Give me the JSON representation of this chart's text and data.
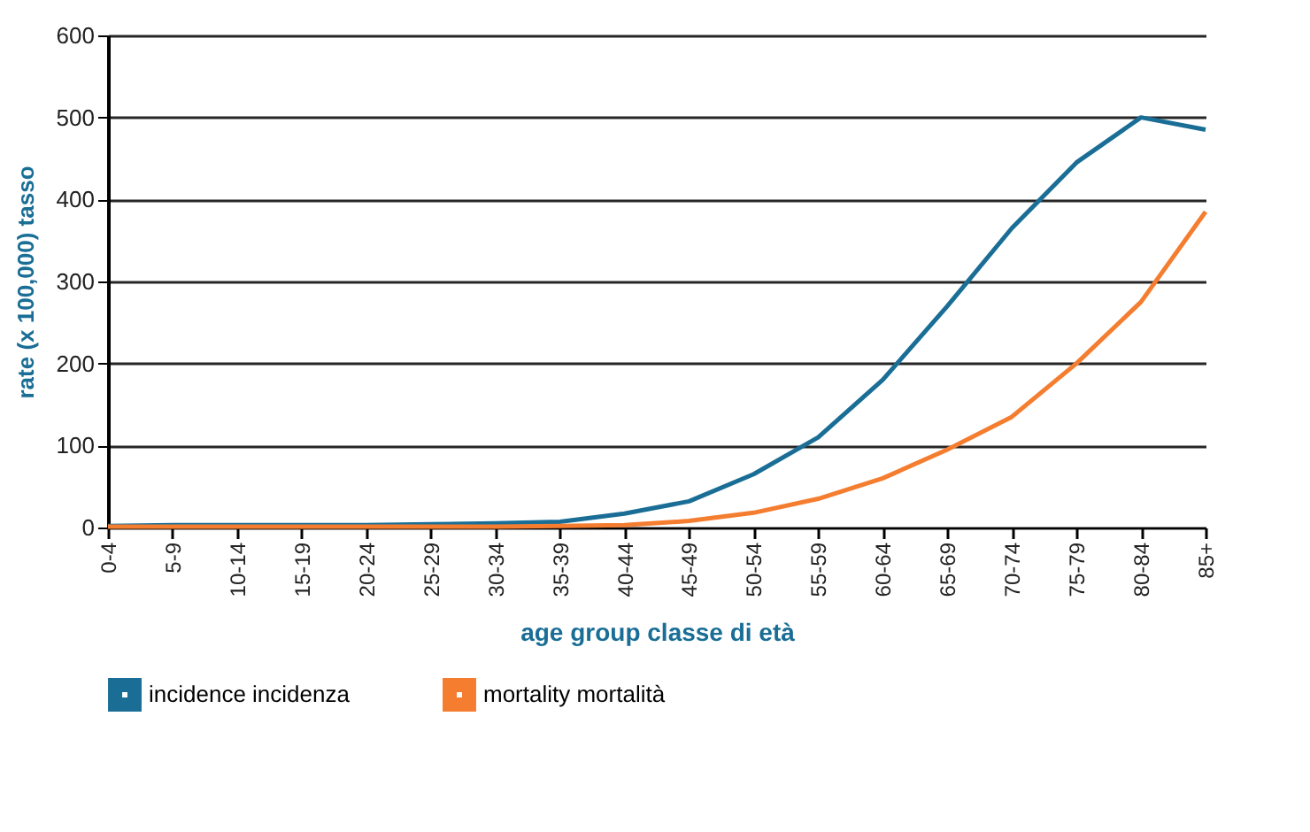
{
  "chart_data": {
    "type": "line",
    "xlabel": "age group  classe di età",
    "ylabel": "rate (x 100,000) tasso",
    "categories": [
      "0-4",
      "5-9",
      "10-14",
      "15-19",
      "20-24",
      "25-29",
      "30-34",
      "35-39",
      "40-44",
      "45-49",
      "50-54",
      "55-59",
      "60-64",
      "65-69",
      "70-74",
      "75-79",
      "80-84",
      "85+"
    ],
    "series": [
      {
        "name": "incidence incidenza",
        "color": "#1a6e96",
        "values": [
          2,
          3,
          3,
          3,
          3,
          4,
          5,
          7,
          17,
          32,
          65,
          110,
          180,
          270,
          365,
          445,
          500,
          485
        ]
      },
      {
        "name": "mortality mortalità",
        "color": "#f47d30",
        "values": [
          1,
          1,
          1,
          1,
          1,
          1,
          1,
          2,
          3,
          8,
          18,
          35,
          60,
          95,
          135,
          200,
          275,
          385
        ]
      }
    ],
    "ylim": [
      0,
      600
    ],
    "yticks": [
      0,
      100,
      200,
      300,
      400,
      500,
      600
    ],
    "grid": "y",
    "legend": "bottom",
    "marker": "none",
    "line_style": "solid"
  }
}
